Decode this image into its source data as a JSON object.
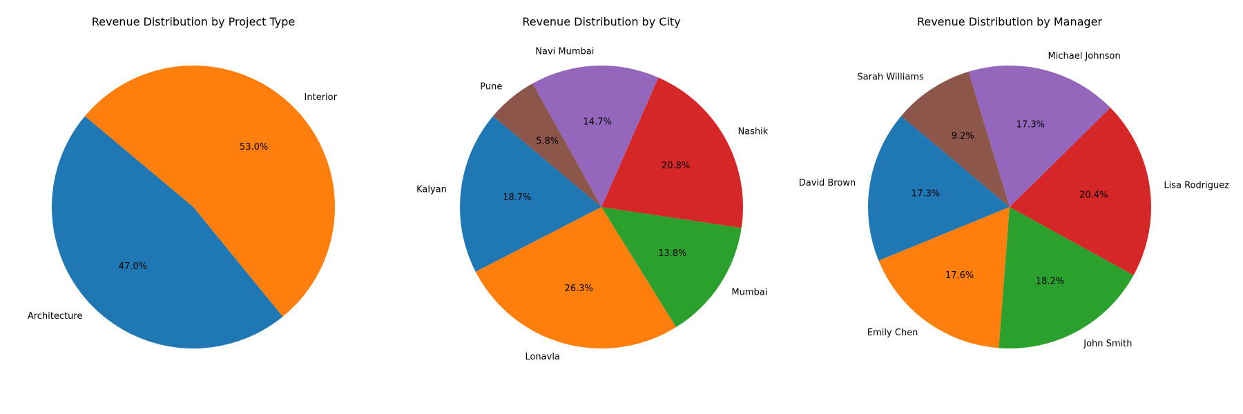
{
  "chart_data": [
    {
      "type": "pie",
      "title": "Revenue Distribution by Project Type",
      "labels": [
        "Architecture",
        "Interior"
      ],
      "values": [
        47.0,
        53.0
      ],
      "pct_labels": [
        "47.0%",
        "53.0%"
      ],
      "colors": [
        "#1f77b4",
        "#ff7f0e"
      ],
      "start_angle": 140,
      "direction": "counterclockwise"
    },
    {
      "type": "pie",
      "title": "Revenue Distribution by City",
      "labels": [
        "Kalyan",
        "Lonavla",
        "Mumbai",
        "Nashik",
        "Navi Mumbai",
        "Pune"
      ],
      "values": [
        18.7,
        26.3,
        13.8,
        20.8,
        14.7,
        5.8
      ],
      "pct_labels": [
        "18.7%",
        "26.3%",
        "13.8%",
        "20.8%",
        "14.7%",
        "5.8%"
      ],
      "colors": [
        "#1f77b4",
        "#ff7f0e",
        "#2ca02c",
        "#d62728",
        "#9467bd",
        "#8c564b"
      ],
      "start_angle": 140,
      "direction": "counterclockwise"
    },
    {
      "type": "pie",
      "title": "Revenue Distribution by Manager",
      "labels": [
        "David Brown",
        "Emily Chen",
        "John Smith",
        "Lisa Rodriguez",
        "Michael Johnson",
        "Sarah Williams"
      ],
      "values": [
        17.3,
        17.6,
        18.2,
        20.4,
        17.3,
        9.2
      ],
      "pct_labels": [
        "17.3%",
        "17.6%",
        "18.2%",
        "20.4%",
        "17.3%",
        "9.2%"
      ],
      "colors": [
        "#1f77b4",
        "#ff7f0e",
        "#2ca02c",
        "#d62728",
        "#9467bd",
        "#8c564b"
      ],
      "start_angle": 140,
      "direction": "counterclockwise"
    }
  ]
}
